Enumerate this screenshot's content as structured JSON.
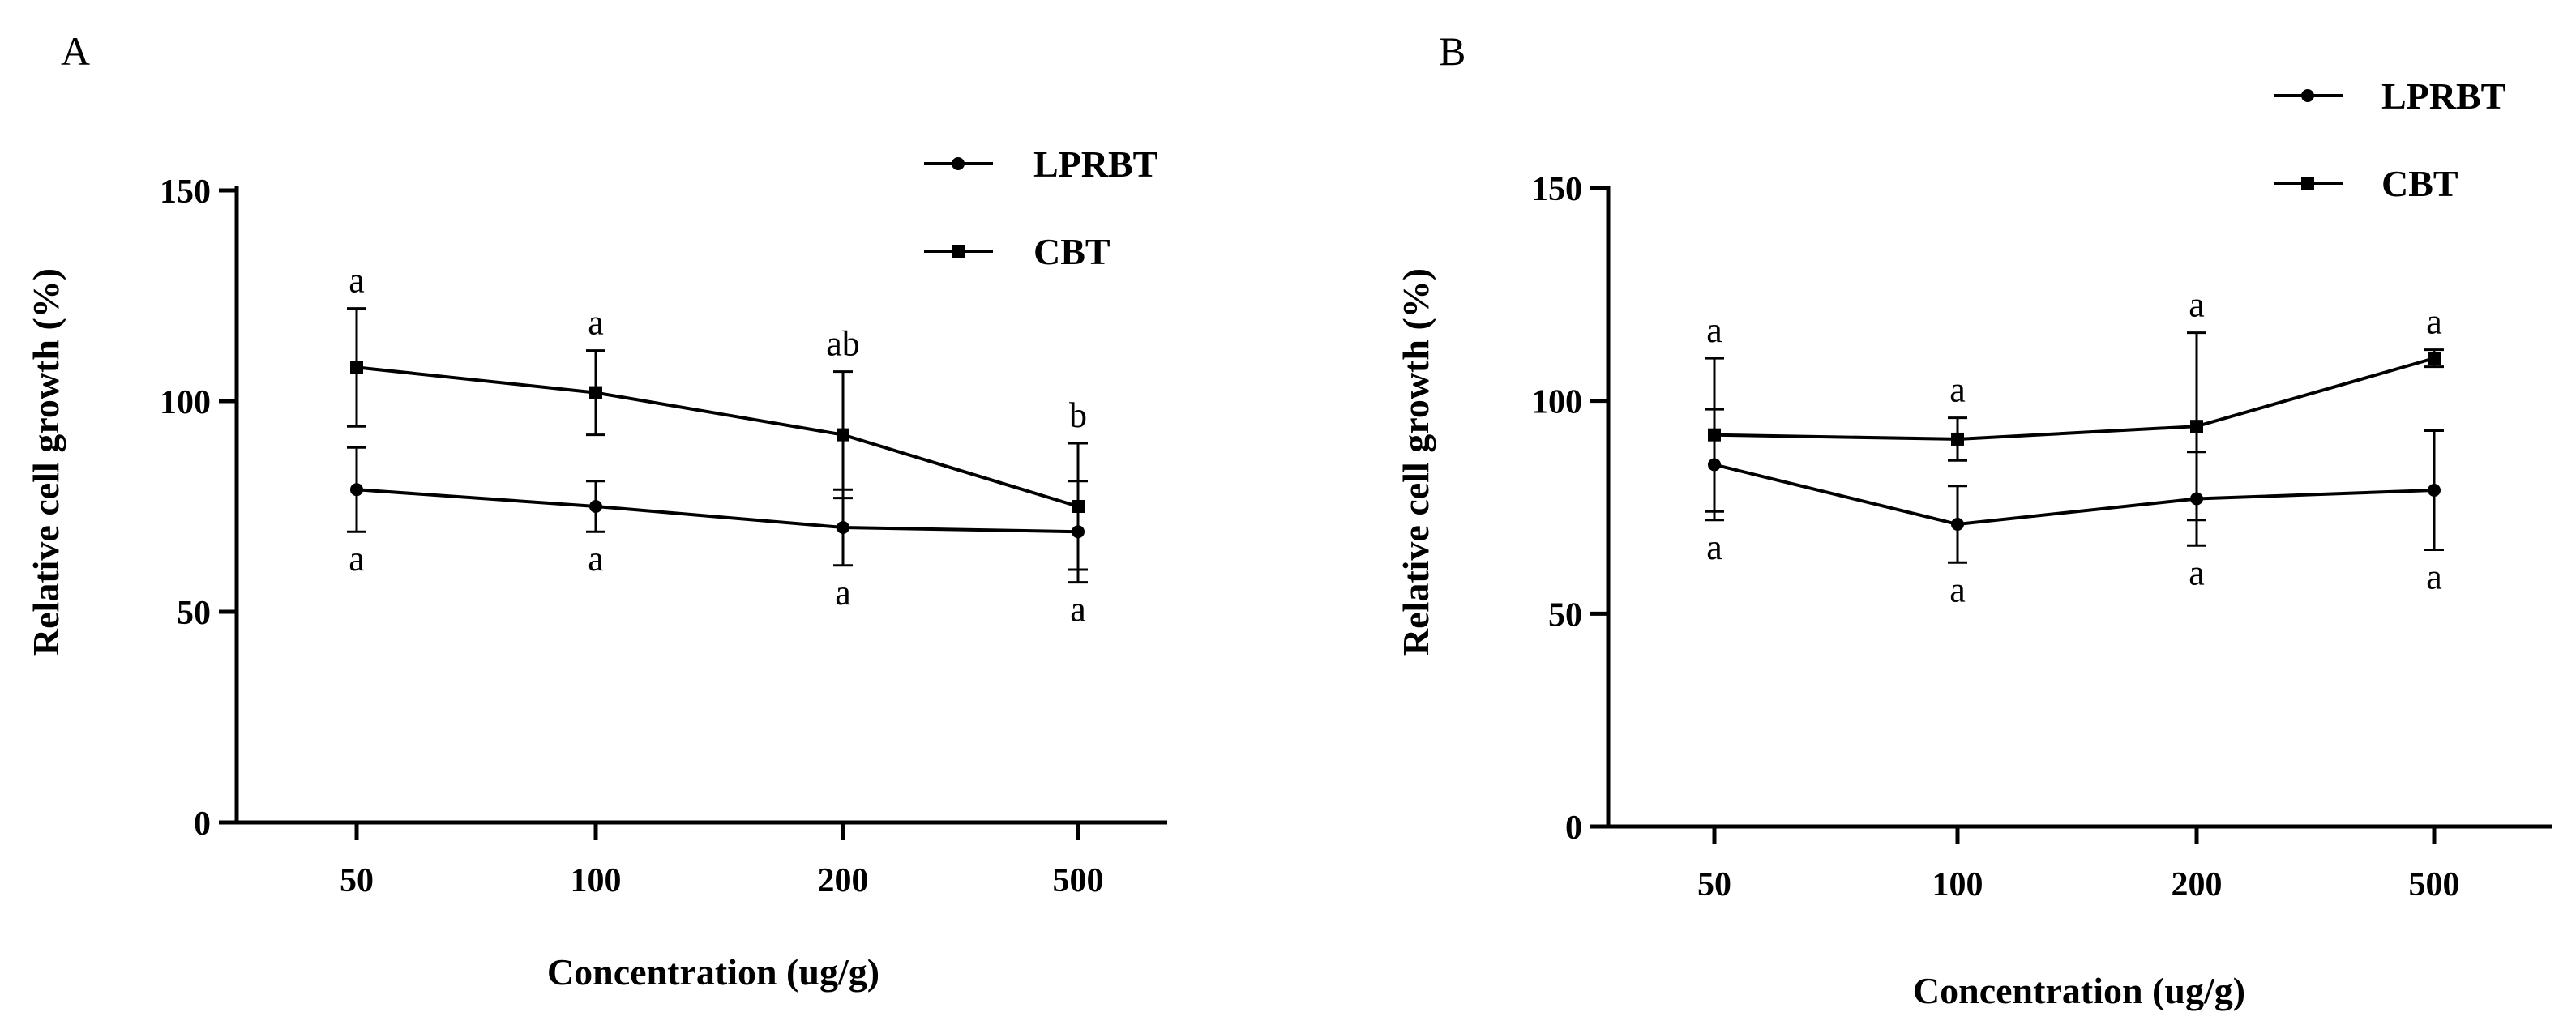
{
  "chart_data": [
    {
      "type": "line",
      "panel_label": "A",
      "title": "",
      "xlabel": "Concentration (ug/g)",
      "ylabel": "Relative cell growth (%)",
      "categories": [
        "50",
        "100",
        "200",
        "500"
      ],
      "ylim": [
        0,
        150
      ],
      "yticks": [
        "0",
        "50",
        "100",
        "150"
      ],
      "legend_position": "top-right",
      "series": [
        {
          "name": "LPRBT",
          "marker": "circle",
          "values": [
            79,
            75,
            70,
            69
          ],
          "errors": [
            10,
            6,
            9,
            12
          ],
          "labels": [
            "a",
            "a",
            "a",
            "a"
          ],
          "label_position": "below"
        },
        {
          "name": "CBT",
          "marker": "square",
          "values": [
            108,
            102,
            92,
            75
          ],
          "errors": [
            14,
            10,
            15,
            15
          ],
          "labels": [
            "a",
            "a",
            "ab",
            "b"
          ],
          "label_position": "above"
        }
      ]
    },
    {
      "type": "line",
      "panel_label": "B",
      "title": "",
      "xlabel": "Concentration (ug/g)",
      "ylabel": "Relative cell growth (%)",
      "categories": [
        "50",
        "100",
        "200",
        "500"
      ],
      "ylim": [
        0,
        150
      ],
      "yticks": [
        "0",
        "50",
        "100",
        "150"
      ],
      "legend_position": "top-right",
      "series": [
        {
          "name": "LPRBT",
          "marker": "circle",
          "values": [
            85,
            71,
            77,
            79
          ],
          "errors": [
            13,
            9,
            11,
            14
          ],
          "labels": [
            "a",
            "a",
            "a",
            "a"
          ],
          "label_position": "below"
        },
        {
          "name": "CBT",
          "marker": "square",
          "values": [
            92,
            91,
            94,
            110
          ],
          "errors": [
            18,
            5,
            22,
            2
          ],
          "labels": [
            "a",
            "a",
            "a",
            "a"
          ],
          "label_position": "above"
        }
      ]
    }
  ]
}
